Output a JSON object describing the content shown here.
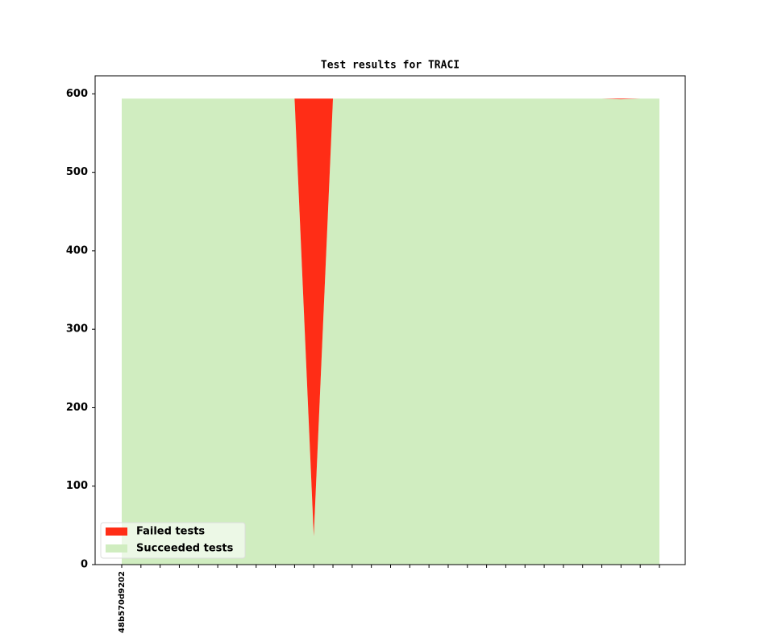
{
  "chart_data": {
    "type": "stacked_area",
    "title": "Test results for TRACI",
    "categories": [
      "48b570d9202",
      null,
      null,
      null,
      null,
      null,
      null,
      null,
      null,
      null,
      null,
      null,
      null,
      null,
      null,
      null,
      null,
      null,
      null,
      null,
      null,
      null,
      null,
      null,
      null,
      null,
      null,
      null,
      null
    ],
    "series": [
      {
        "name": "Failed tests",
        "color": "#ff2d16",
        "values": [
          0,
          0,
          0,
          0,
          0,
          0,
          0,
          0,
          0,
          0,
          558,
          0,
          0,
          0,
          0,
          0,
          0,
          0,
          0,
          0,
          0,
          0,
          0,
          0,
          0,
          0,
          1,
          0,
          0
        ]
      },
      {
        "name": "Succeeded tests",
        "color": "#d0edc0",
        "values": [
          594,
          594,
          594,
          594,
          594,
          594,
          594,
          594,
          594,
          594,
          36,
          594,
          594,
          594,
          594,
          594,
          594,
          594,
          594,
          594,
          594,
          594,
          594,
          594,
          594,
          594,
          593,
          594,
          594
        ]
      }
    ],
    "ylim": [
      0,
      623
    ],
    "yticks": [
      0,
      100,
      200,
      300,
      400,
      500,
      600
    ],
    "grid": false,
    "legend": "lower left"
  }
}
